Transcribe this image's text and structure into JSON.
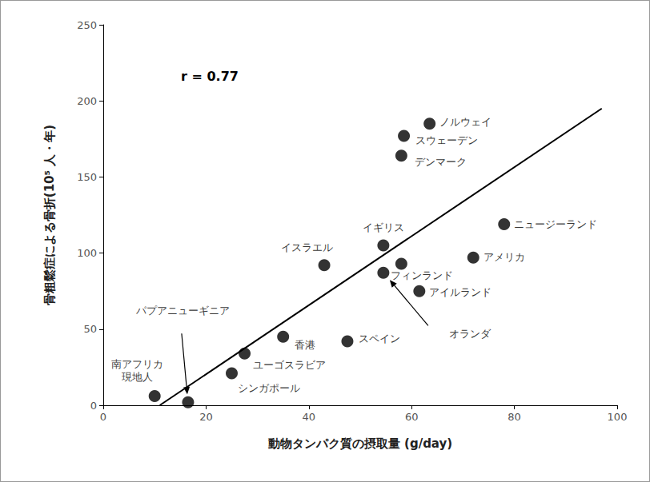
{
  "chart_data": {
    "type": "scatter",
    "x_label": "動物タンパク質の摂取量 (g/day)",
    "y_label": "骨粗鬆症による骨折(10⁵ 人・年)",
    "annotation": "r = 0.77",
    "labels": [
      "南アフリカ\n現地人",
      "パプアニューギニア",
      "シンガポール",
      "ユーゴスラビア",
      "香港",
      "イスラエル",
      "スペイン",
      "イギリス",
      "オランダ",
      "フィンランド",
      "デンマーク",
      "スウェーデン",
      "ノルウェイ",
      "アイルランド",
      "アメリカ",
      "ニュージーランド"
    ],
    "x": [
      10,
      16.5,
      25,
      27.5,
      35,
      43,
      47.5,
      54.5,
      54.5,
      58,
      58,
      58.5,
      63.5,
      61.5,
      72,
      78
    ],
    "values": [
      6,
      2,
      21,
      34,
      45,
      92,
      42,
      105,
      87,
      93,
      164,
      177,
      185,
      75,
      97,
      119
    ],
    "color": "#000000",
    "marker": "circle",
    "trend_line": {
      "x": [
        11,
        97
      ],
      "y": [
        0,
        195
      ],
      "color": "#000000",
      "line_style": "solid"
    },
    "xlim": [
      0,
      100
    ],
    "xticks": [
      0,
      20,
      40,
      60,
      80,
      100
    ],
    "ylim": [
      0,
      250
    ],
    "yticks": [
      0,
      50,
      100,
      150,
      200,
      250
    ],
    "grid": false
  }
}
